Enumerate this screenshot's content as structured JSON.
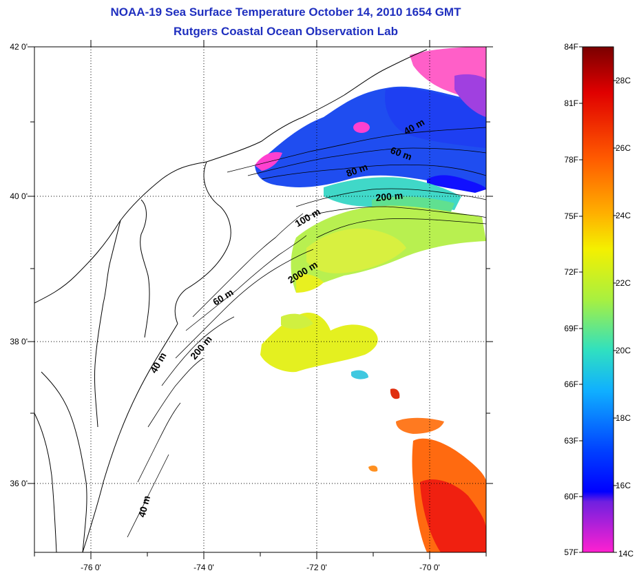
{
  "title": "NOAA-19 Sea Surface Temperature October 14, 2010 1654 GMT",
  "subtitle": "Rutgers Coastal Ocean Observation Lab",
  "map": {
    "lat_labels": [
      "42 0'",
      "40 0'",
      "38 0'",
      "36 0'"
    ],
    "lon_labels": [
      "-76 0'",
      "-74 0'",
      "-72 0'",
      "-70 0'"
    ],
    "lat_range": [
      35,
      42
    ],
    "lon_range": [
      -77,
      -69
    ]
  },
  "contours": [
    "40 m",
    "60 m",
    "80 m",
    "200 m",
    "100 m",
    "2000 m",
    "60 m",
    "40 m",
    "200 m",
    "40 m"
  ],
  "colorbar": {
    "f_labels": [
      "84F",
      "81F",
      "78F",
      "75F",
      "72F",
      "69F",
      "66F",
      "63F",
      "60F",
      "57F"
    ],
    "c_labels": [
      "28C",
      "26C",
      "24C",
      "22C",
      "20C",
      "18C",
      "16C",
      "14C"
    ],
    "colors": [
      "#8b0000",
      "#ff2000",
      "#ff8000",
      "#ffd000",
      "#f0ff20",
      "#70f060",
      "#20e8e0",
      "#10a0ff",
      "#0010ff",
      "#a020e0",
      "#ff20c0"
    ]
  }
}
